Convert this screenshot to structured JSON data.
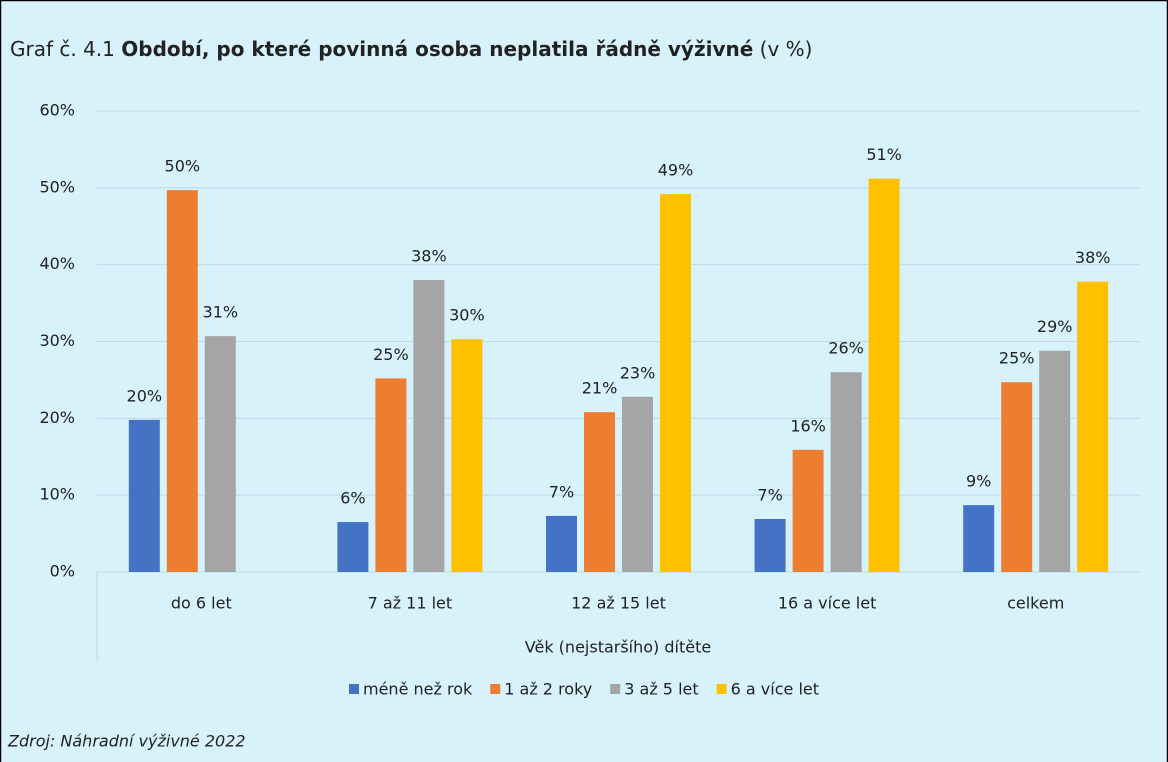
{
  "chart_data": {
    "type": "bar",
    "title": [
      "Graf č. 4.1",
      "Období, po které povinná osoba neplatila řádně výživné",
      "(v %)"
    ],
    "x_label": "Věk (nejstaršího) dítěte",
    "source": "Zdroj: Náhradní výživné 2022",
    "categories": [
      "do 6 let",
      "7 až 11 let",
      "12 až 15 let",
      "16 a více let",
      "celkem"
    ],
    "series": [
      {
        "name": "méně než rok",
        "color": "#4472c4",
        "values": [
          19.8,
          6.5,
          7.3,
          6.9,
          8.7
        ],
        "value_labels": [
          "20%",
          "6%",
          "7%",
          "7%",
          "9%"
        ]
      },
      {
        "name": "1 až 2 roky",
        "color": "#ed7d31",
        "values": [
          49.7,
          25.2,
          20.8,
          15.9,
          24.7
        ],
        "value_labels": [
          "50%",
          "25%",
          "21%",
          "16%",
          "25%"
        ]
      },
      {
        "name": "3 až 5 let",
        "color": "#a5a5a5",
        "values": [
          30.7,
          38.0,
          22.8,
          26.0,
          28.8
        ],
        "value_labels": [
          "31%",
          "38%",
          "23%",
          "26%",
          "29%"
        ]
      },
      {
        "name": "6 a více let",
        "color": "#ffc000",
        "values": [
          null,
          30.3,
          49.2,
          51.2,
          37.8
        ],
        "value_labels": [
          null,
          "30%",
          "49%",
          "51%",
          "38%"
        ]
      }
    ],
    "ylim": [
      0,
      60
    ],
    "yticks": [
      {
        "value": 0,
        "label": "0%"
      },
      {
        "value": 10,
        "label": "10%"
      },
      {
        "value": 20,
        "label": "20%"
      },
      {
        "value": 30,
        "label": "30%"
      },
      {
        "value": 40,
        "label": "40%"
      },
      {
        "value": 50,
        "label": "50%"
      },
      {
        "value": 60,
        "label": "60%"
      }
    ],
    "grid": true,
    "legend": "bottom"
  }
}
